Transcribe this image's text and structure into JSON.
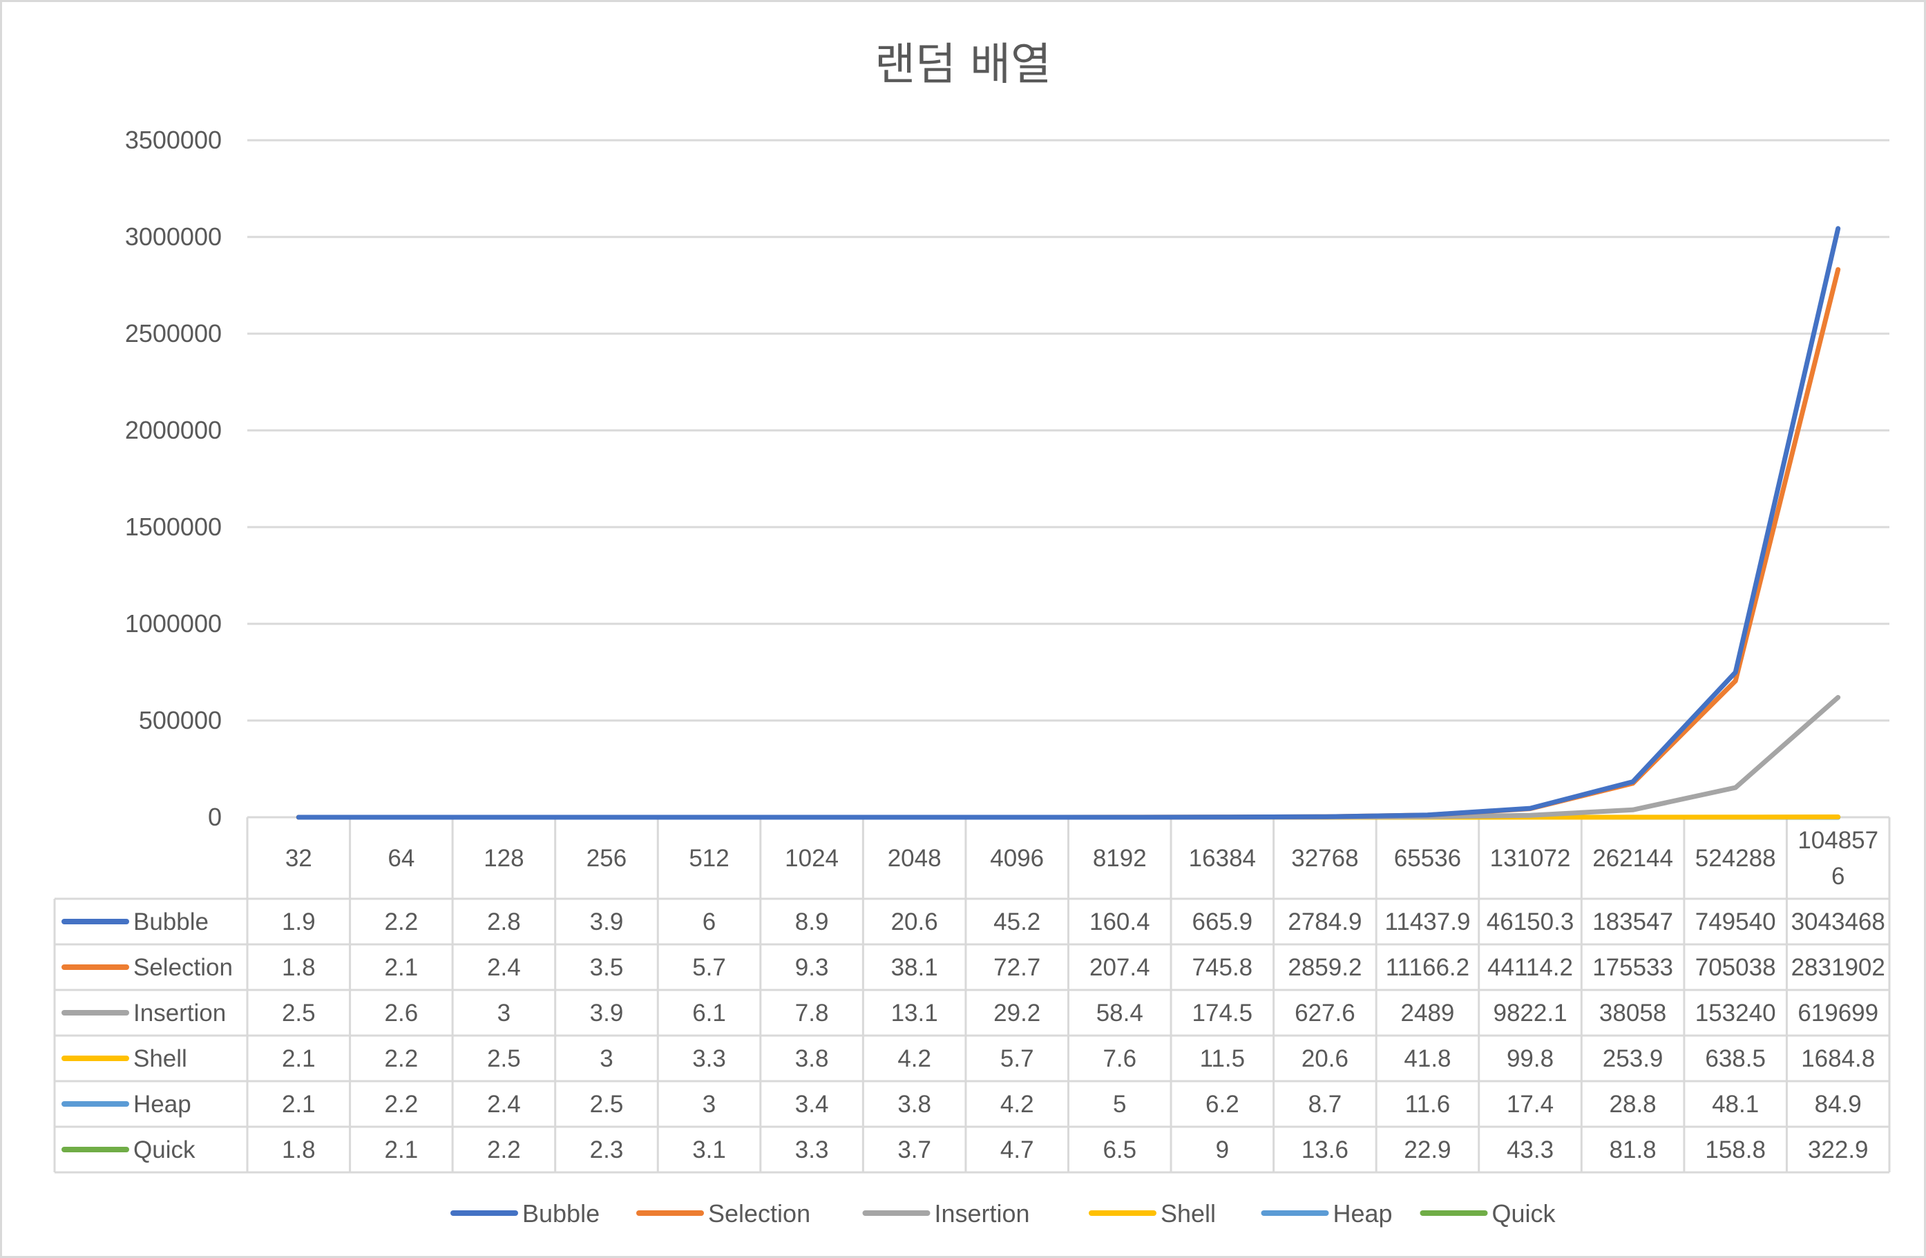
{
  "chart_data": {
    "type": "line",
    "title": "랜덤 배열",
    "xlabel": "",
    "ylabel": "",
    "ylim": [
      0,
      3500000
    ],
    "y_ticks": [
      "0",
      "500000",
      "1000000",
      "1500000",
      "2000000",
      "2500000",
      "3000000",
      "3500000"
    ],
    "grid": true,
    "legend_position": "bottom",
    "data_table": true,
    "categories": [
      "32",
      "64",
      "128",
      "256",
      "512",
      "1024",
      "2048",
      "4096",
      "8192",
      "16384",
      "32768",
      "65536",
      "131072",
      "262144",
      "524288",
      "1048576"
    ],
    "category_labels": [
      [
        "32"
      ],
      [
        "64"
      ],
      [
        "128"
      ],
      [
        "256"
      ],
      [
        "512"
      ],
      [
        "1024"
      ],
      [
        "2048"
      ],
      [
        "4096"
      ],
      [
        "8192"
      ],
      [
        "16384"
      ],
      [
        "32768"
      ],
      [
        "65536"
      ],
      [
        "131072"
      ],
      [
        "262144"
      ],
      [
        "524288"
      ],
      [
        "104857",
        "6"
      ]
    ],
    "series": [
      {
        "name": "Bubble",
        "color": "#4472c4",
        "values": [
          1.9,
          2.2,
          2.8,
          3.9,
          6,
          8.9,
          20.6,
          45.2,
          160.4,
          665.9,
          2784.9,
          11437.9,
          46150.3,
          183547,
          749540,
          3043468
        ],
        "labels": [
          "1.9",
          "2.2",
          "2.8",
          "3.9",
          "6",
          "8.9",
          "20.6",
          "45.2",
          "160.4",
          "665.9",
          "2784.9",
          "11437.9",
          "46150.3",
          "183547",
          "749540",
          "3043468"
        ]
      },
      {
        "name": "Selection",
        "color": "#ed7d31",
        "values": [
          1.8,
          2.1,
          2.4,
          3.5,
          5.7,
          9.3,
          38.1,
          72.7,
          207.4,
          745.8,
          2859.2,
          11166.2,
          44114.2,
          175533,
          705038,
          2831902
        ],
        "labels": [
          "1.8",
          "2.1",
          "2.4",
          "3.5",
          "5.7",
          "9.3",
          "38.1",
          "72.7",
          "207.4",
          "745.8",
          "2859.2",
          "11166.2",
          "44114.2",
          "175533",
          "705038",
          "2831902"
        ]
      },
      {
        "name": "Insertion",
        "color": "#a5a5a5",
        "values": [
          2.5,
          2.6,
          3,
          3.9,
          6.1,
          7.8,
          13.1,
          29.2,
          58.4,
          174.5,
          627.6,
          2489,
          9822.1,
          38058,
          153240,
          619699
        ],
        "labels": [
          "2.5",
          "2.6",
          "3",
          "3.9",
          "6.1",
          "7.8",
          "13.1",
          "29.2",
          "58.4",
          "174.5",
          "627.6",
          "2489",
          "9822.1",
          "38058",
          "153240",
          "619699"
        ]
      },
      {
        "name": "Shell",
        "color": "#ffc000",
        "values": [
          2.1,
          2.2,
          2.5,
          3,
          3.3,
          3.8,
          4.2,
          5.7,
          7.6,
          11.5,
          20.6,
          41.8,
          99.8,
          253.9,
          638.5,
          1684.8
        ],
        "labels": [
          "2.1",
          "2.2",
          "2.5",
          "3",
          "3.3",
          "3.8",
          "4.2",
          "5.7",
          "7.6",
          "11.5",
          "20.6",
          "41.8",
          "99.8",
          "253.9",
          "638.5",
          "1684.8"
        ]
      },
      {
        "name": "Heap",
        "color": "#5b9bd5",
        "values": [
          2.1,
          2.2,
          2.4,
          2.5,
          3,
          3.4,
          3.8,
          4.2,
          5,
          6.2,
          8.7,
          11.6,
          17.4,
          28.8,
          48.1,
          84.9
        ],
        "labels": [
          "2.1",
          "2.2",
          "2.4",
          "2.5",
          "3",
          "3.4",
          "3.8",
          "4.2",
          "5",
          "6.2",
          "8.7",
          "11.6",
          "17.4",
          "28.8",
          "48.1",
          "84.9"
        ]
      },
      {
        "name": "Quick",
        "color": "#70ad47",
        "values": [
          1.8,
          2.1,
          2.2,
          2.3,
          3.1,
          3.3,
          3.7,
          4.7,
          6.5,
          9,
          13.6,
          22.9,
          43.3,
          81.8,
          158.8,
          322.9
        ],
        "labels": [
          "1.8",
          "2.1",
          "2.2",
          "2.3",
          "3.1",
          "3.3",
          "3.7",
          "4.7",
          "6.5",
          "9",
          "13.6",
          "22.9",
          "43.3",
          "81.8",
          "158.8",
          "322.9"
        ]
      }
    ]
  }
}
